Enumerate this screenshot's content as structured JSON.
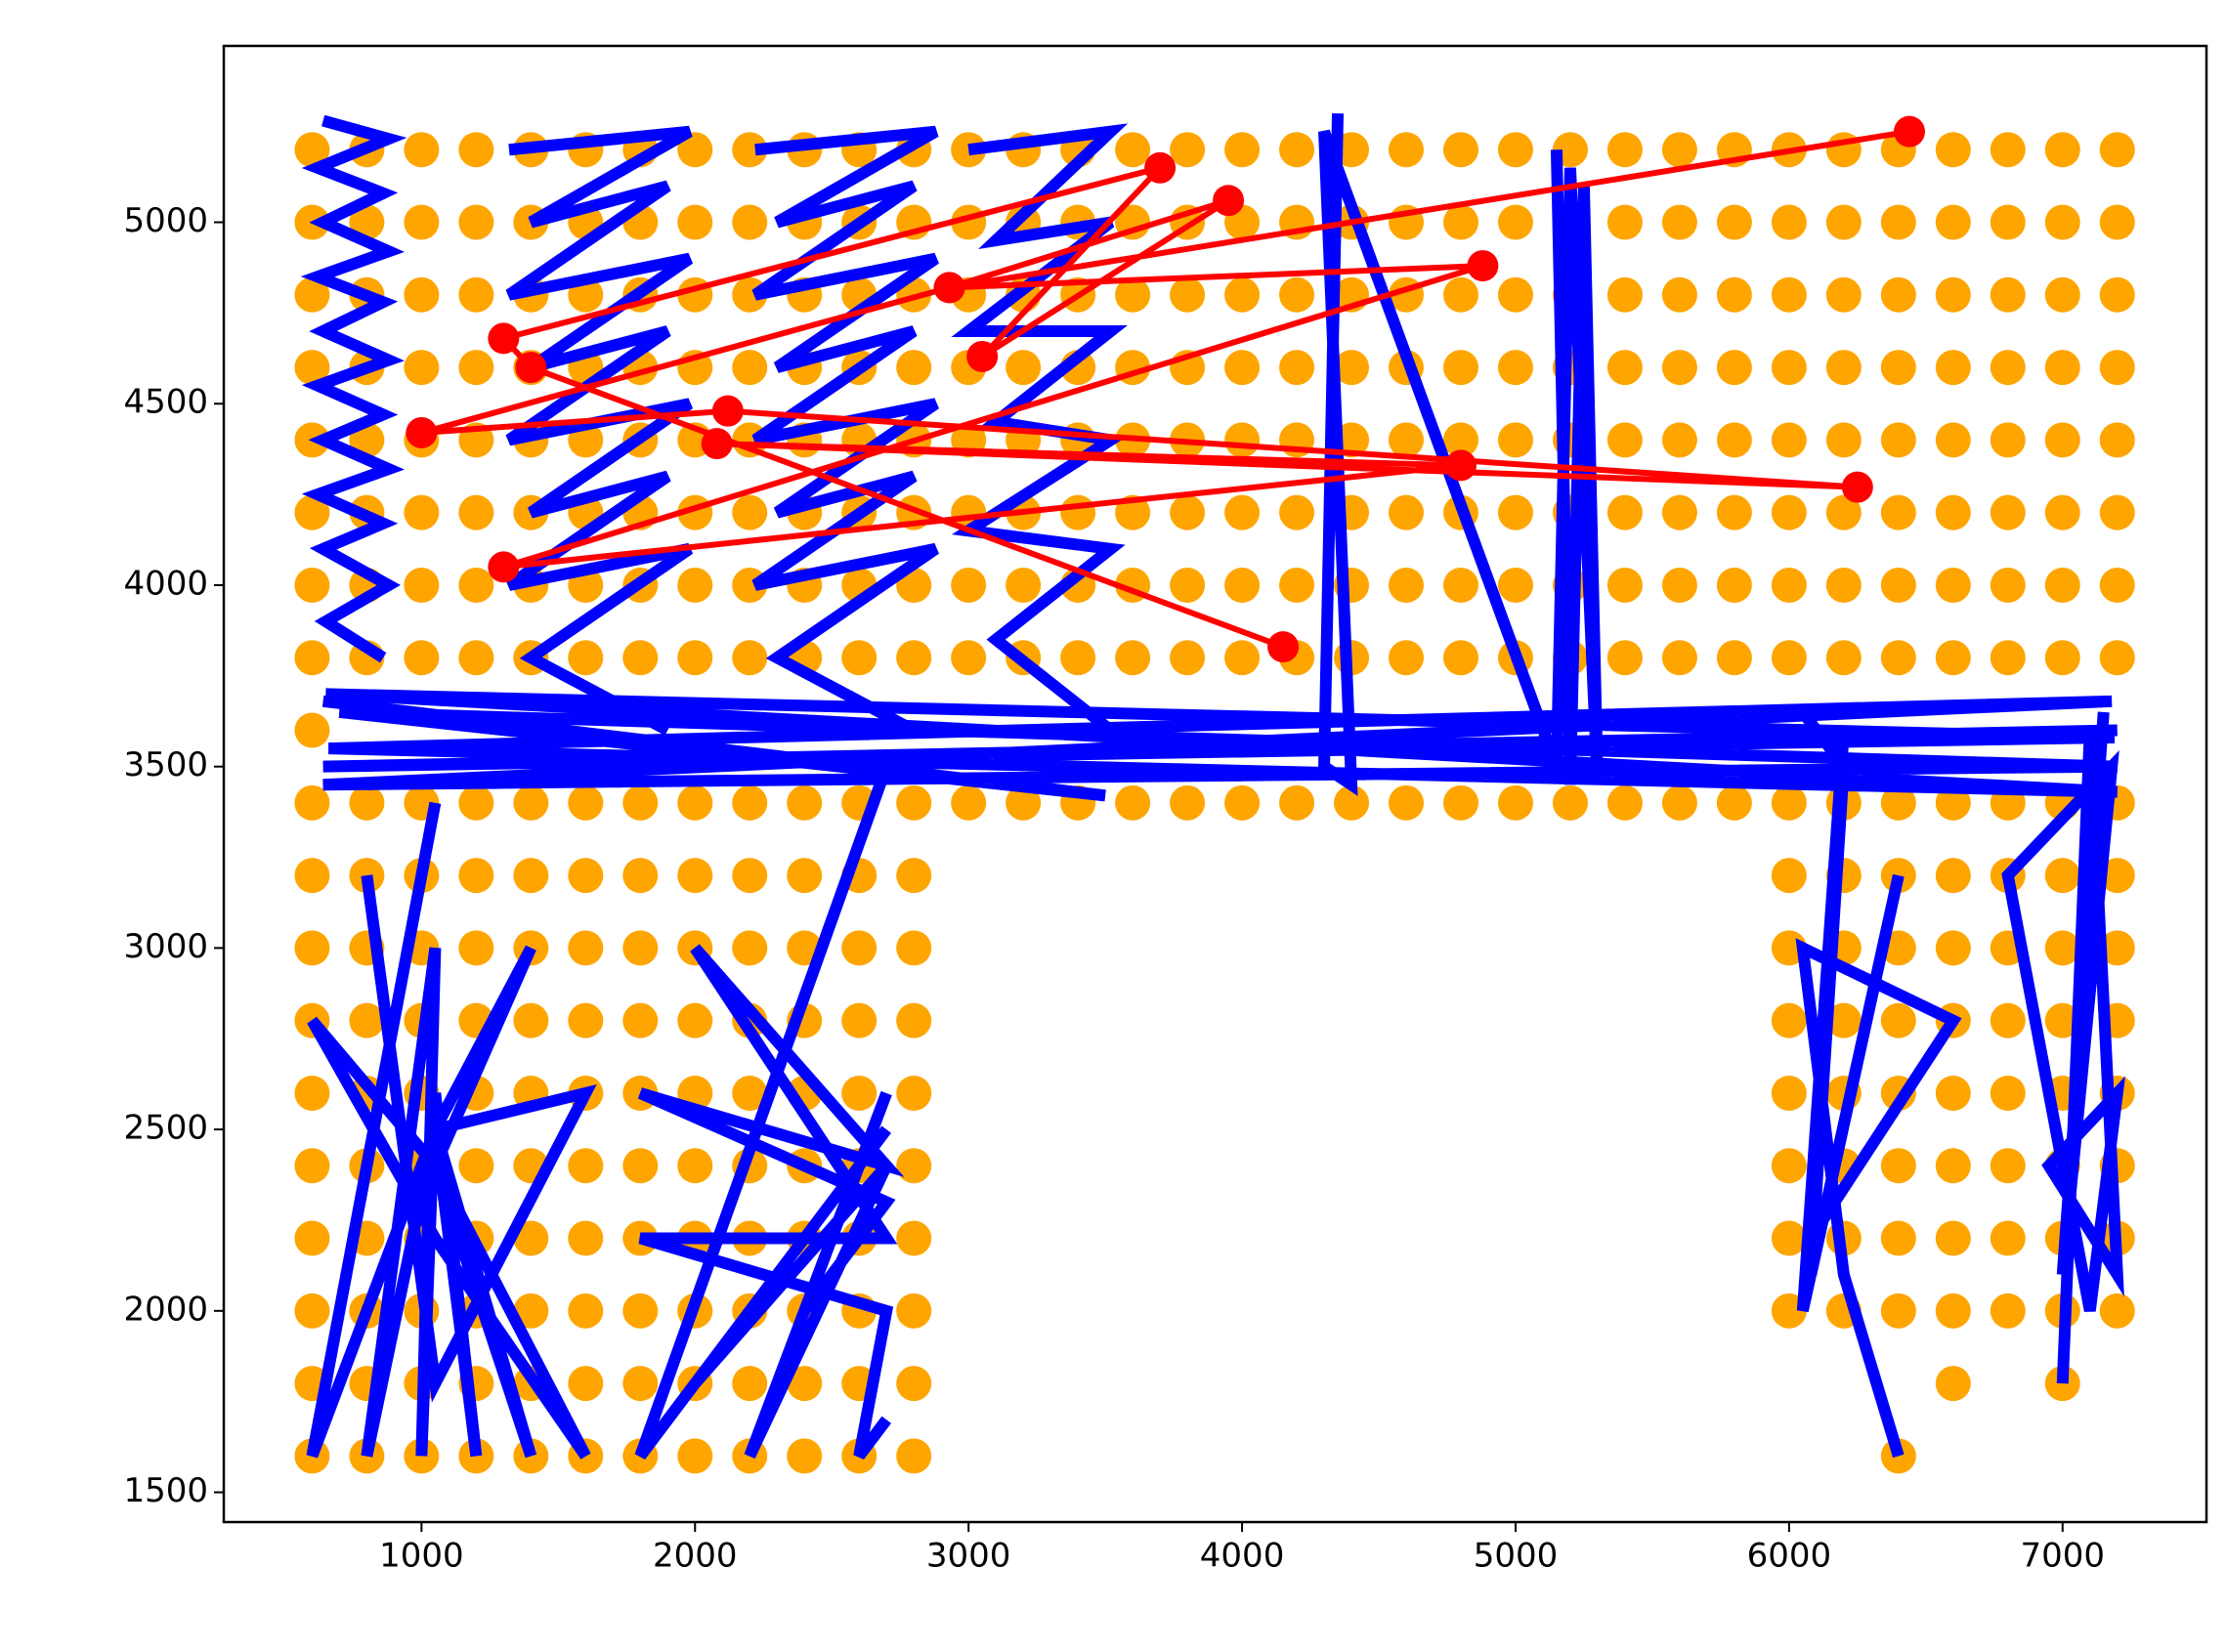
{
  "chart_data": {
    "type": "scatter",
    "xlim": [
      277,
      7526
    ],
    "ylim": [
      1418,
      5486
    ],
    "xticks": [
      1000,
      2000,
      3000,
      4000,
      5000,
      6000,
      7000
    ],
    "yticks": [
      1500,
      2000,
      2500,
      3000,
      3500,
      4000,
      4500,
      5000
    ],
    "points": {
      "color": "#ffa500",
      "x": [
        600,
        800,
        1000,
        1200,
        1400,
        1600,
        1800,
        2000,
        2200,
        2400,
        2600,
        2800,
        3000,
        3200,
        3400,
        3600,
        3800,
        4000,
        4200,
        4400,
        4600,
        4800,
        5000,
        5200,
        5400,
        5600,
        5800,
        6000,
        6200,
        6400,
        6600,
        6800,
        7000,
        7200,
        600,
        800,
        1000,
        1200,
        1400,
        1600,
        1800,
        2000,
        2200,
        2400,
        2600,
        2800,
        3000,
        3200,
        3400,
        3600,
        3800,
        4000,
        4200,
        4400,
        4600,
        4800,
        5000,
        5200,
        5400,
        5600,
        5800,
        6000,
        6200,
        6400,
        6600,
        6800,
        7000,
        7200,
        600,
        800,
        1000,
        1200,
        1400,
        1600,
        1800,
        2000,
        2200,
        2400,
        2600,
        2800,
        3000,
        3200,
        3400,
        3600,
        3800,
        4000,
        4200,
        4400,
        4600,
        4800,
        5000,
        5200,
        5400,
        5600,
        5800,
        6000,
        6200,
        6400,
        6600,
        6800,
        7000,
        7200,
        600,
        800,
        1000,
        1200,
        1400,
        1600,
        1800,
        2000,
        2200,
        2400,
        2600,
        2800,
        3000,
        3200,
        3400,
        3600,
        3800,
        4000,
        4200,
        4400,
        4600,
        4800,
        5000,
        5200,
        5400,
        5600,
        5800,
        6000,
        6200,
        6400,
        6600,
        6800,
        7000,
        7200,
        600,
        800,
        1000,
        1200,
        1400,
        1600,
        1800,
        2000,
        2200,
        2400,
        2600,
        2800,
        3000,
        3200,
        3400,
        3600,
        3800,
        4000,
        4200,
        4400,
        4600,
        4800,
        5000,
        5200,
        5400,
        5600,
        5800,
        6000,
        6200,
        6400,
        6600,
        6800,
        7000,
        7200,
        600,
        800,
        1000,
        1200,
        1400,
        1600,
        1800,
        2000,
        2200,
        2400,
        2600,
        2800,
        3000,
        3200,
        3400,
        3600,
        3800,
        4000,
        4200,
        4400,
        4600,
        4800,
        5000,
        5200,
        5400,
        5600,
        5800,
        6000,
        6200,
        6400,
        6600,
        6800,
        7000,
        7200,
        600,
        800,
        1000,
        1200,
        1400,
        1600,
        1800,
        2000,
        2200,
        2400,
        2600,
        2800,
        3000,
        3200,
        3400,
        3600,
        3800,
        4000,
        4200,
        4400,
        4600,
        4800,
        5000,
        5200,
        5400,
        5600,
        5800,
        6000,
        6200,
        6400,
        6600,
        6800,
        7000,
        7200,
        600,
        800,
        1000,
        1200,
        1400,
        1600,
        1800,
        2000,
        2200,
        2400,
        2600,
        2800,
        3000,
        3200,
        3400,
        3600,
        3800,
        4000,
        4200,
        4400,
        4600,
        4800,
        5000,
        5200,
        5400,
        5600,
        5800,
        6000,
        6200,
        6400,
        6600,
        6800,
        7000,
        7200,
        600,
        800,
        1000,
        1200,
        1400,
        1600,
        1800,
        2000,
        2200,
        2400,
        2600,
        2800,
        3000,
        3200,
        3400,
        3600,
        3800,
        4000,
        4200,
        4400,
        4600,
        4800,
        5000,
        5200,
        5400,
        5600,
        5800,
        6000,
        6200,
        6400,
        6600,
        6800,
        7000,
        7200,
        600,
        800,
        1000,
        1200,
        1400,
        1600,
        1800,
        2000,
        2200,
        2400,
        2600,
        2800,
        600,
        800,
        1000,
        1200,
        1400,
        1600,
        1800,
        2000,
        2200,
        2400,
        2600,
        2800,
        600,
        800,
        1000,
        1200,
        1400,
        1600,
        1800,
        2000,
        2200,
        2400,
        2600,
        2800,
        600,
        800,
        1000,
        1200,
        1400,
        1600,
        1800,
        2000,
        2200,
        2400,
        2600,
        2800,
        600,
        800,
        1000,
        1200,
        1400,
        1600,
        1800,
        2000,
        2200,
        2400,
        2600,
        2800,
        600,
        800,
        1000,
        1200,
        1400,
        1600,
        1800,
        2000,
        2200,
        2400,
        2600,
        2800,
        600,
        800,
        1000,
        1200,
        1400,
        1600,
        1800,
        2000,
        2200,
        2400,
        2600,
        2800,
        600,
        800,
        1000,
        1200,
        1400,
        1600,
        1800,
        2000,
        2200,
        2400,
        2600,
        2800,
        600,
        800,
        1000,
        1200,
        1400,
        1600,
        1800,
        2000,
        2200,
        2400,
        2600,
        2800,
        6000,
        6200,
        6400,
        6600,
        6800,
        7000,
        7200,
        6000,
        6200,
        6400,
        6600,
        6800,
        7000,
        7200,
        6000,
        6200,
        6400,
        6600,
        6800,
        7000,
        7200,
        6000,
        6200,
        6400,
        6600,
        6800,
        7000,
        7200,
        6000,
        6200,
        6400,
        6600,
        6800,
        7000,
        7200,
        6000,
        6200,
        6400,
        6600,
        6800,
        7000,
        7200,
        6000,
        6200,
        6400,
        6600,
        6800,
        7000,
        7200,
        6600,
        7000,
        6400,
        600
      ],
      "y": [
        5200,
        5200,
        5200,
        5200,
        5200,
        5200,
        5200,
        5200,
        5200,
        5200,
        5200,
        5200,
        5200,
        5200,
        5200,
        5200,
        5200,
        5200,
        5200,
        5200,
        5200,
        5200,
        5200,
        5200,
        5200,
        5200,
        5200,
        5200,
        5200,
        5200,
        5200,
        5200,
        5200,
        5200,
        5000,
        5000,
        5000,
        5000,
        5000,
        5000,
        5000,
        5000,
        5000,
        5000,
        5000,
        5000,
        5000,
        5000,
        5000,
        5000,
        5000,
        5000,
        5000,
        5000,
        5000,
        5000,
        5000,
        5000,
        5000,
        5000,
        5000,
        5000,
        5000,
        5000,
        5000,
        5000,
        5000,
        5000,
        4800,
        4800,
        4800,
        4800,
        4800,
        4800,
        4800,
        4800,
        4800,
        4800,
        4800,
        4800,
        4800,
        4800,
        4800,
        4800,
        4800,
        4800,
        4800,
        4800,
        4800,
        4800,
        4800,
        4800,
        4800,
        4800,
        4800,
        4800,
        4800,
        4800,
        4800,
        4800,
        4800,
        4800,
        4600,
        4600,
        4600,
        4600,
        4600,
        4600,
        4600,
        4600,
        4600,
        4600,
        4600,
        4600,
        4600,
        4600,
        4600,
        4600,
        4600,
        4600,
        4600,
        4600,
        4600,
        4600,
        4600,
        4600,
        4600,
        4600,
        4600,
        4600,
        4600,
        4600,
        4600,
        4600,
        4600,
        4600,
        4400,
        4400,
        4400,
        4400,
        4400,
        4400,
        4400,
        4400,
        4400,
        4400,
        4400,
        4400,
        4400,
        4400,
        4400,
        4400,
        4400,
        4400,
        4400,
        4400,
        4400,
        4400,
        4400,
        4400,
        4400,
        4400,
        4400,
        4400,
        4400,
        4400,
        4400,
        4400,
        4400,
        4400,
        4200,
        4200,
        4200,
        4200,
        4200,
        4200,
        4200,
        4200,
        4200,
        4200,
        4200,
        4200,
        4200,
        4200,
        4200,
        4200,
        4200,
        4200,
        4200,
        4200,
        4200,
        4200,
        4200,
        4200,
        4200,
        4200,
        4200,
        4200,
        4200,
        4200,
        4200,
        4200,
        4200,
        4200,
        4000,
        4000,
        4000,
        4000,
        4000,
        4000,
        4000,
        4000,
        4000,
        4000,
        4000,
        4000,
        4000,
        4000,
        4000,
        4000,
        4000,
        4000,
        4000,
        4000,
        4000,
        4000,
        4000,
        4000,
        4000,
        4000,
        4000,
        4000,
        4000,
        4000,
        4000,
        4000,
        4000,
        4000,
        3800,
        3800,
        3800,
        3800,
        3800,
        3800,
        3800,
        3800,
        3800,
        3800,
        3800,
        3800,
        3800,
        3800,
        3800,
        3800,
        3800,
        3800,
        3800,
        3800,
        3800,
        3800,
        3800,
        3800,
        3800,
        3800,
        3800,
        3800,
        3800,
        3800,
        3800,
        3800,
        3800,
        3800,
        3400,
        3400,
        3400,
        3400,
        3400,
        3400,
        3400,
        3400,
        3400,
        3400,
        3400,
        3400,
        3400,
        3400,
        3400,
        3400,
        3400,
        3400,
        3400,
        3400,
        3400,
        3400,
        3400,
        3400,
        3400,
        3400,
        3400,
        3400,
        3400,
        3400,
        3400,
        3400,
        3400,
        3400,
        3200,
        3200,
        3200,
        3200,
        3200,
        3200,
        3200,
        3200,
        3200,
        3200,
        3200,
        3200,
        3000,
        3000,
        3000,
        3000,
        3000,
        3000,
        3000,
        3000,
        3000,
        3000,
        3000,
        3000,
        2800,
        2800,
        2800,
        2800,
        2800,
        2800,
        2800,
        2800,
        2800,
        2800,
        2800,
        2800,
        2600,
        2600,
        2600,
        2600,
        2600,
        2600,
        2600,
        2600,
        2600,
        2600,
        2600,
        2600,
        2400,
        2400,
        2400,
        2400,
        2400,
        2400,
        2400,
        2400,
        2400,
        2400,
        2400,
        2400,
        2200,
        2200,
        2200,
        2200,
        2200,
        2200,
        2200,
        2200,
        2200,
        2200,
        2200,
        2200,
        2000,
        2000,
        2000,
        2000,
        2000,
        2000,
        2000,
        2000,
        2000,
        2000,
        2000,
        2000,
        1800,
        1800,
        1800,
        1800,
        1800,
        1800,
        1800,
        1800,
        1800,
        1800,
        1800,
        1800,
        1600,
        1600,
        1600,
        1600,
        1600,
        1600,
        1600,
        1600,
        1600,
        1600,
        1600,
        1600,
        3200,
        3200,
        3200,
        3200,
        3200,
        3200,
        3200,
        3000,
        3000,
        3000,
        3000,
        3000,
        3000,
        3000,
        2800,
        2800,
        2800,
        2800,
        2800,
        2800,
        2800,
        2600,
        2600,
        2600,
        2600,
        2600,
        2600,
        2600,
        2400,
        2400,
        2400,
        2400,
        2400,
        2400,
        2400,
        2200,
        2200,
        2200,
        2200,
        2200,
        2200,
        2200,
        2000,
        2000,
        2000,
        2000,
        2000,
        2000,
        2000,
        1800,
        1800,
        1600,
        3600
      ]
    },
    "lines": [
      {
        "color": "#0000ff",
        "x": [
          640,
          880,
          620,
          860,
          640,
          880,
          620,
          860,
          640,
          880,
          620,
          860,
          640,
          880,
          620,
          860,
          640,
          880,
          650,
          860
        ],
        "y": [
          5280,
          5230,
          5150,
          5080,
          5000,
          4920,
          4850,
          4780,
          4700,
          4620,
          4550,
          4470,
          4400,
          4320,
          4250,
          4170,
          4100,
          4000,
          3900,
          3800
        ]
      },
      {
        "color": "#0000ff",
        "x": [
          1320,
          1980,
          1400,
          1900,
          1320,
          1980,
          1400,
          1900,
          1320,
          1980,
          1400,
          1900,
          1320,
          1980,
          1400,
          1900
        ],
        "y": [
          5200,
          5250,
          5000,
          5100,
          4800,
          4900,
          4600,
          4700,
          4400,
          4500,
          4200,
          4300,
          4000,
          4100,
          3800,
          3600
        ]
      },
      {
        "color": "#0000ff",
        "x": [
          2220,
          2880,
          2300,
          2800,
          2220,
          2880,
          2300,
          2800,
          2220,
          2880,
          2300,
          2800,
          2220,
          2880,
          2300,
          2800
        ],
        "y": [
          5200,
          5250,
          5000,
          5100,
          4800,
          4900,
          4600,
          4700,
          4400,
          4500,
          4200,
          4300,
          4000,
          4100,
          3800,
          3600
        ]
      },
      {
        "color": "#0000ff",
        "x": [
          3000,
          3520,
          3100,
          3520,
          3000,
          3520,
          3100,
          3520,
          3000,
          3520,
          3100,
          3520
        ],
        "y": [
          5200,
          5250,
          4950,
          5000,
          4700,
          4700,
          4450,
          4400,
          4150,
          4100,
          3850,
          3600
        ]
      },
      {
        "color": "#0000ff",
        "x": [
          640,
          3500,
          700,
          7200,
          640,
          7180,
          660,
          7200,
          650,
          7190,
          640,
          7200
        ],
        "y": [
          3680,
          3420,
          3650,
          3500,
          3450,
          3680,
          3550,
          3430,
          3700,
          3580,
          3500,
          3600
        ]
      },
      {
        "color": "#0000ff",
        "x": [
          1050,
          600,
          1050,
          800,
          1050,
          1000,
          1050,
          1200,
          1050,
          1400,
          1050,
          1600,
          1050,
          600,
          1050,
          1400,
          1050,
          1600,
          1050,
          800
        ],
        "y": [
          3400,
          1600,
          2500,
          1600,
          3000,
          1600,
          2600,
          1600,
          2500,
          1600,
          2400,
          1600,
          2200,
          2800,
          2400,
          3000,
          2500,
          2600,
          1800,
          3200
        ]
      },
      {
        "color": "#0000ff",
        "x": [
          2700,
          1800,
          2700,
          2000,
          2700,
          2200,
          2700,
          2400,
          2700,
          1800,
          2700,
          2000,
          2700,
          1800,
          2700,
          2600,
          2700
        ],
        "y": [
          3500,
          1600,
          2500,
          1800,
          2400,
          1600,
          2600,
          2000,
          2300,
          2600,
          2400,
          3000,
          2200,
          2200,
          2000,
          1600,
          1700
        ]
      },
      {
        "color": "#0000ff",
        "x": [
          6050,
          6200,
          6080,
          6400,
          6050,
          6200,
          6080,
          6600,
          6050,
          6200,
          6400
        ],
        "y": [
          3650,
          3500,
          2100,
          3200,
          2000,
          3600,
          2200,
          2800,
          3000,
          2100,
          1600
        ]
      },
      {
        "color": "#0000ff",
        "x": [
          7150,
          7000,
          7180,
          6800,
          7100,
          7200,
          6950,
          7200,
          7100,
          7000
        ],
        "y": [
          3650,
          2100,
          3500,
          3200,
          2000,
          2600,
          2400,
          2100,
          3600,
          1800
        ]
      },
      {
        "color": "#0000ff",
        "x": [
          5150,
          5200,
          5250,
          5300,
          5200,
          5150,
          4300,
          4400,
          4300,
          4350
        ],
        "y": [
          5200,
          3450,
          5100,
          3450,
          5150,
          3500,
          5250,
          3450,
          3500,
          5300
        ]
      }
    ],
    "path": {
      "color": "#ff0000",
      "x": [
        4150,
        1400,
        1300,
        3700,
        3050,
        3950,
        2930,
        4880,
        1300,
        4800,
        2080,
        6250,
        2120,
        1000,
        2930,
        6440
      ],
      "y": [
        3830,
        4600,
        4680,
        5150,
        4630,
        5060,
        4820,
        4880,
        4050,
        4330,
        4390,
        4270,
        4480,
        4420,
        4820,
        5250
      ]
    }
  }
}
